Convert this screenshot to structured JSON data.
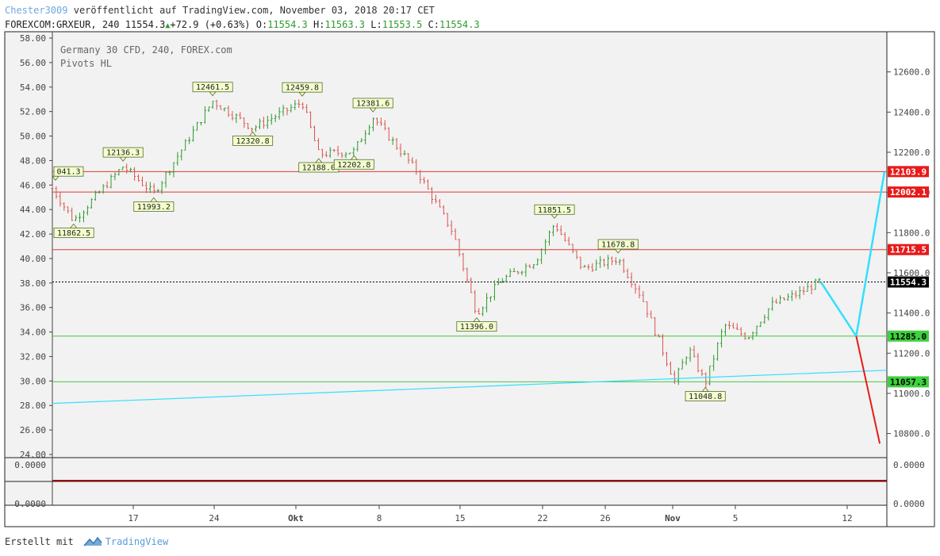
{
  "header": {
    "author": "Chester3009",
    "published": "veröffentlicht auf TradingView.com, November 03, 2018 20:17 CET",
    "symbol": "FOREXCOM:GRXEUR, 240",
    "last": "11554.3",
    "change": "+72.9 (+0.63%)",
    "o_label": "O:",
    "o": "11554.3",
    "h_label": "H:",
    "h": "11563.3",
    "l_label": "L:",
    "l": "11553.5",
    "c_label": "C:",
    "c": "11554.3"
  },
  "legend": {
    "line1": "Germany 30 CFD, 240, FOREX.com",
    "line2": "Pivots HL"
  },
  "footer": {
    "created_with": "Erstellt mit",
    "brand": "TradingView"
  },
  "colors": {
    "up": "#2f9a2f",
    "down": "#d9534f",
    "resistance": "#e53935",
    "support": "#43c943",
    "trend": "#33dfff",
    "projection_down": "#e81a1a"
  },
  "chart_data": {
    "type": "candlestick",
    "x_ticks": [
      "17",
      "24",
      "Okt",
      "8",
      "15",
      "22",
      "26",
      "Nov",
      "5",
      "12"
    ],
    "left_axis": {
      "labels": [
        "58.00",
        "56.00",
        "54.00",
        "52.00",
        "50.00",
        "48.00",
        "46.00",
        "44.00",
        "42.00",
        "40.00",
        "38.00",
        "36.00",
        "34.00",
        "32.00",
        "30.00",
        "28.00",
        "26.00",
        "24.00"
      ]
    },
    "right_axis": {
      "labels": [
        "12600.0",
        "12400.0",
        "12200.0",
        "12000.0",
        "11800.0",
        "11600.0",
        "11400.0",
        "11200.0",
        "11000.0",
        "10800.0"
      ],
      "range": [
        10680,
        12800
      ]
    },
    "price_tags": [
      {
        "value": 12103.9,
        "label": "12103.9",
        "kind": "resistance"
      },
      {
        "value": 12002.1,
        "label": "12002.1",
        "kind": "resistance"
      },
      {
        "value": 11715.5,
        "label": "11715.5",
        "kind": "resistance"
      },
      {
        "value": 11554.3,
        "label": "11554.3",
        "kind": "last"
      },
      {
        "value": 11285.0,
        "label": "11285.0",
        "kind": "support"
      },
      {
        "value": 11057.3,
        "label": "11057.3",
        "kind": "support"
      }
    ],
    "pivots": [
      {
        "label": "041.3",
        "value": 12041.3,
        "type": "high",
        "t": 0.0
      },
      {
        "label": "11862.5",
        "value": 11862.5,
        "type": "low",
        "t": 0.9
      },
      {
        "label": "12136.3",
        "value": 12136.3,
        "type": "high",
        "t": 3.0
      },
      {
        "label": "11993.2",
        "value": 11993.2,
        "type": "low",
        "t": 4.3
      },
      {
        "label": "12461.5",
        "value": 12461.5,
        "type": "high",
        "t": 6.8
      },
      {
        "label": "12320.8",
        "value": 12320.8,
        "type": "low",
        "t": 8.5
      },
      {
        "label": "12459.8",
        "value": 12459.8,
        "type": "high",
        "t": 10.6
      },
      {
        "label": "12188.0",
        "value": 12188.0,
        "type": "low",
        "t": 11.3
      },
      {
        "label": "12202.8",
        "value": 12202.8,
        "type": "low",
        "t": 12.8
      },
      {
        "label": "12381.6",
        "value": 12381.6,
        "type": "high",
        "t": 13.6
      },
      {
        "label": "11396.0",
        "value": 11396.0,
        "type": "low",
        "t": 18.0
      },
      {
        "label": "11851.5",
        "value": 11851.5,
        "type": "high",
        "t": 21.3
      },
      {
        "label": "11678.8",
        "value": 11678.8,
        "type": "high",
        "t": 24.0
      },
      {
        "label": "11048.8",
        "value": 11048.8,
        "type": "low",
        "t": 27.7
      }
    ],
    "path_keypoints": [
      [
        0,
        12020
      ],
      [
        0.9,
        11860
      ],
      [
        3,
        12130
      ],
      [
        4.3,
        11995
      ],
      [
        6.8,
        12455
      ],
      [
        8.5,
        12320
      ],
      [
        10.6,
        12450
      ],
      [
        11.3,
        12190
      ],
      [
        12.8,
        12205
      ],
      [
        13.6,
        12375
      ],
      [
        15.5,
        12100
      ],
      [
        17,
        11800
      ],
      [
        18,
        11400
      ],
      [
        19,
        11560
      ],
      [
        20.5,
        11660
      ],
      [
        21.3,
        11845
      ],
      [
        22.5,
        11620
      ],
      [
        24,
        11670
      ],
      [
        25,
        11480
      ],
      [
        26.4,
        11060
      ],
      [
        27,
        11220
      ],
      [
        27.7,
        11050
      ],
      [
        28.5,
        11340
      ],
      [
        29.5,
        11280
      ],
      [
        30.5,
        11440
      ],
      [
        31.7,
        11500
      ],
      [
        32.6,
        11560
      ]
    ],
    "trend_line": {
      "start": [
        0,
        10950
      ],
      "end": [
        35.4,
        11115
      ]
    },
    "projection_up": [
      [
        32.6,
        11554
      ],
      [
        34.1,
        11285
      ],
      [
        35.3,
        12103
      ]
    ],
    "projection_down": [
      [
        34.1,
        11285
      ],
      [
        35.1,
        10750
      ]
    ],
    "x_domain": [
      0,
      35.4
    ],
    "indicator_panel": {
      "labels": [
        "0.0000",
        "0.0000"
      ]
    }
  }
}
